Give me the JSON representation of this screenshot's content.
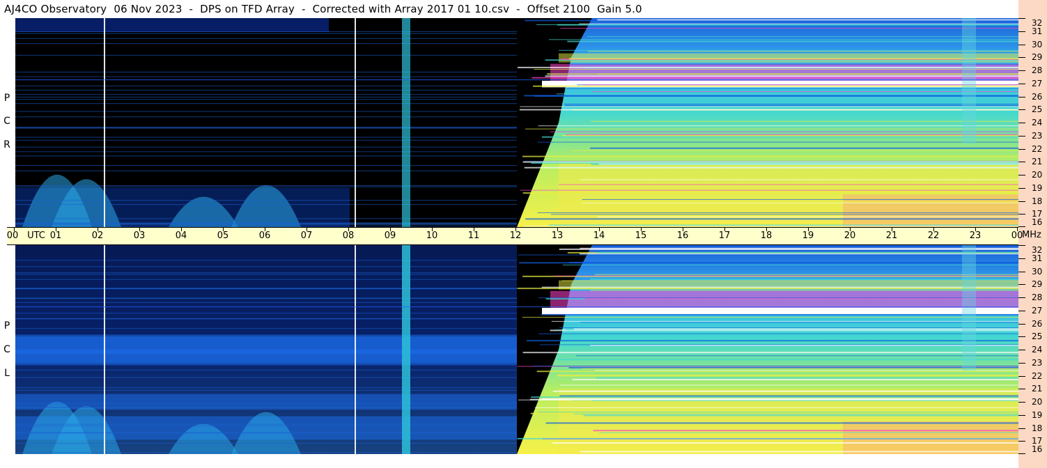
{
  "title": "AJ4CO Observatory  06 Nov 2023  -  DPS on TFD Array  -  Corrected with Array 2017 01 10.csv  -  Offset 2100  Gain 5.0",
  "mhz_label": "MHz",
  "utc_label": "UTC",
  "panels": [
    {
      "id": "top",
      "polarization": [
        "R",
        "C",
        "P"
      ]
    },
    {
      "id": "bottom",
      "polarization": [
        "L",
        "C",
        "P"
      ]
    }
  ],
  "colors": {
    "background_black": "#000000",
    "axis_strip": "#ffffcc",
    "freq_strip": "#fcd9c4",
    "cyan": "#33ccdd",
    "yellow": "#e8f040",
    "magenta": "#ff44cc",
    "blue": "#1060e0"
  },
  "chart_data": {
    "type": "heatmap",
    "title": "AJ4CO Observatory  06 Nov 2023  -  DPS on TFD Array  -  Corrected with Array 2017 01 10.csv  -  Offset 2100  Gain 5.0",
    "x_ticks": [
      "00",
      "01",
      "02",
      "03",
      "04",
      "05",
      "06",
      "07",
      "08",
      "09",
      "10",
      "11",
      "12",
      "13",
      "14",
      "15",
      "16",
      "17",
      "18",
      "19",
      "20",
      "21",
      "22",
      "23",
      "00"
    ],
    "xlabel": "UTC",
    "ylabel": "MHz",
    "y_ticks": [
      32,
      31,
      30,
      29,
      28,
      27,
      26,
      25,
      24,
      23,
      22,
      21,
      20,
      19,
      18,
      17,
      16
    ],
    "xlim": [
      0,
      24
    ],
    "ylim": [
      16,
      32
    ],
    "series": [
      {
        "name": "RCP",
        "sunrise_utc": 12.0,
        "strong_band_mhz": 27
      },
      {
        "name": "LCP",
        "sunrise_utc": 12.0,
        "strong_band_mhz": 27
      }
    ],
    "vertical_markers_utc": [
      2.1,
      8.1
    ]
  }
}
